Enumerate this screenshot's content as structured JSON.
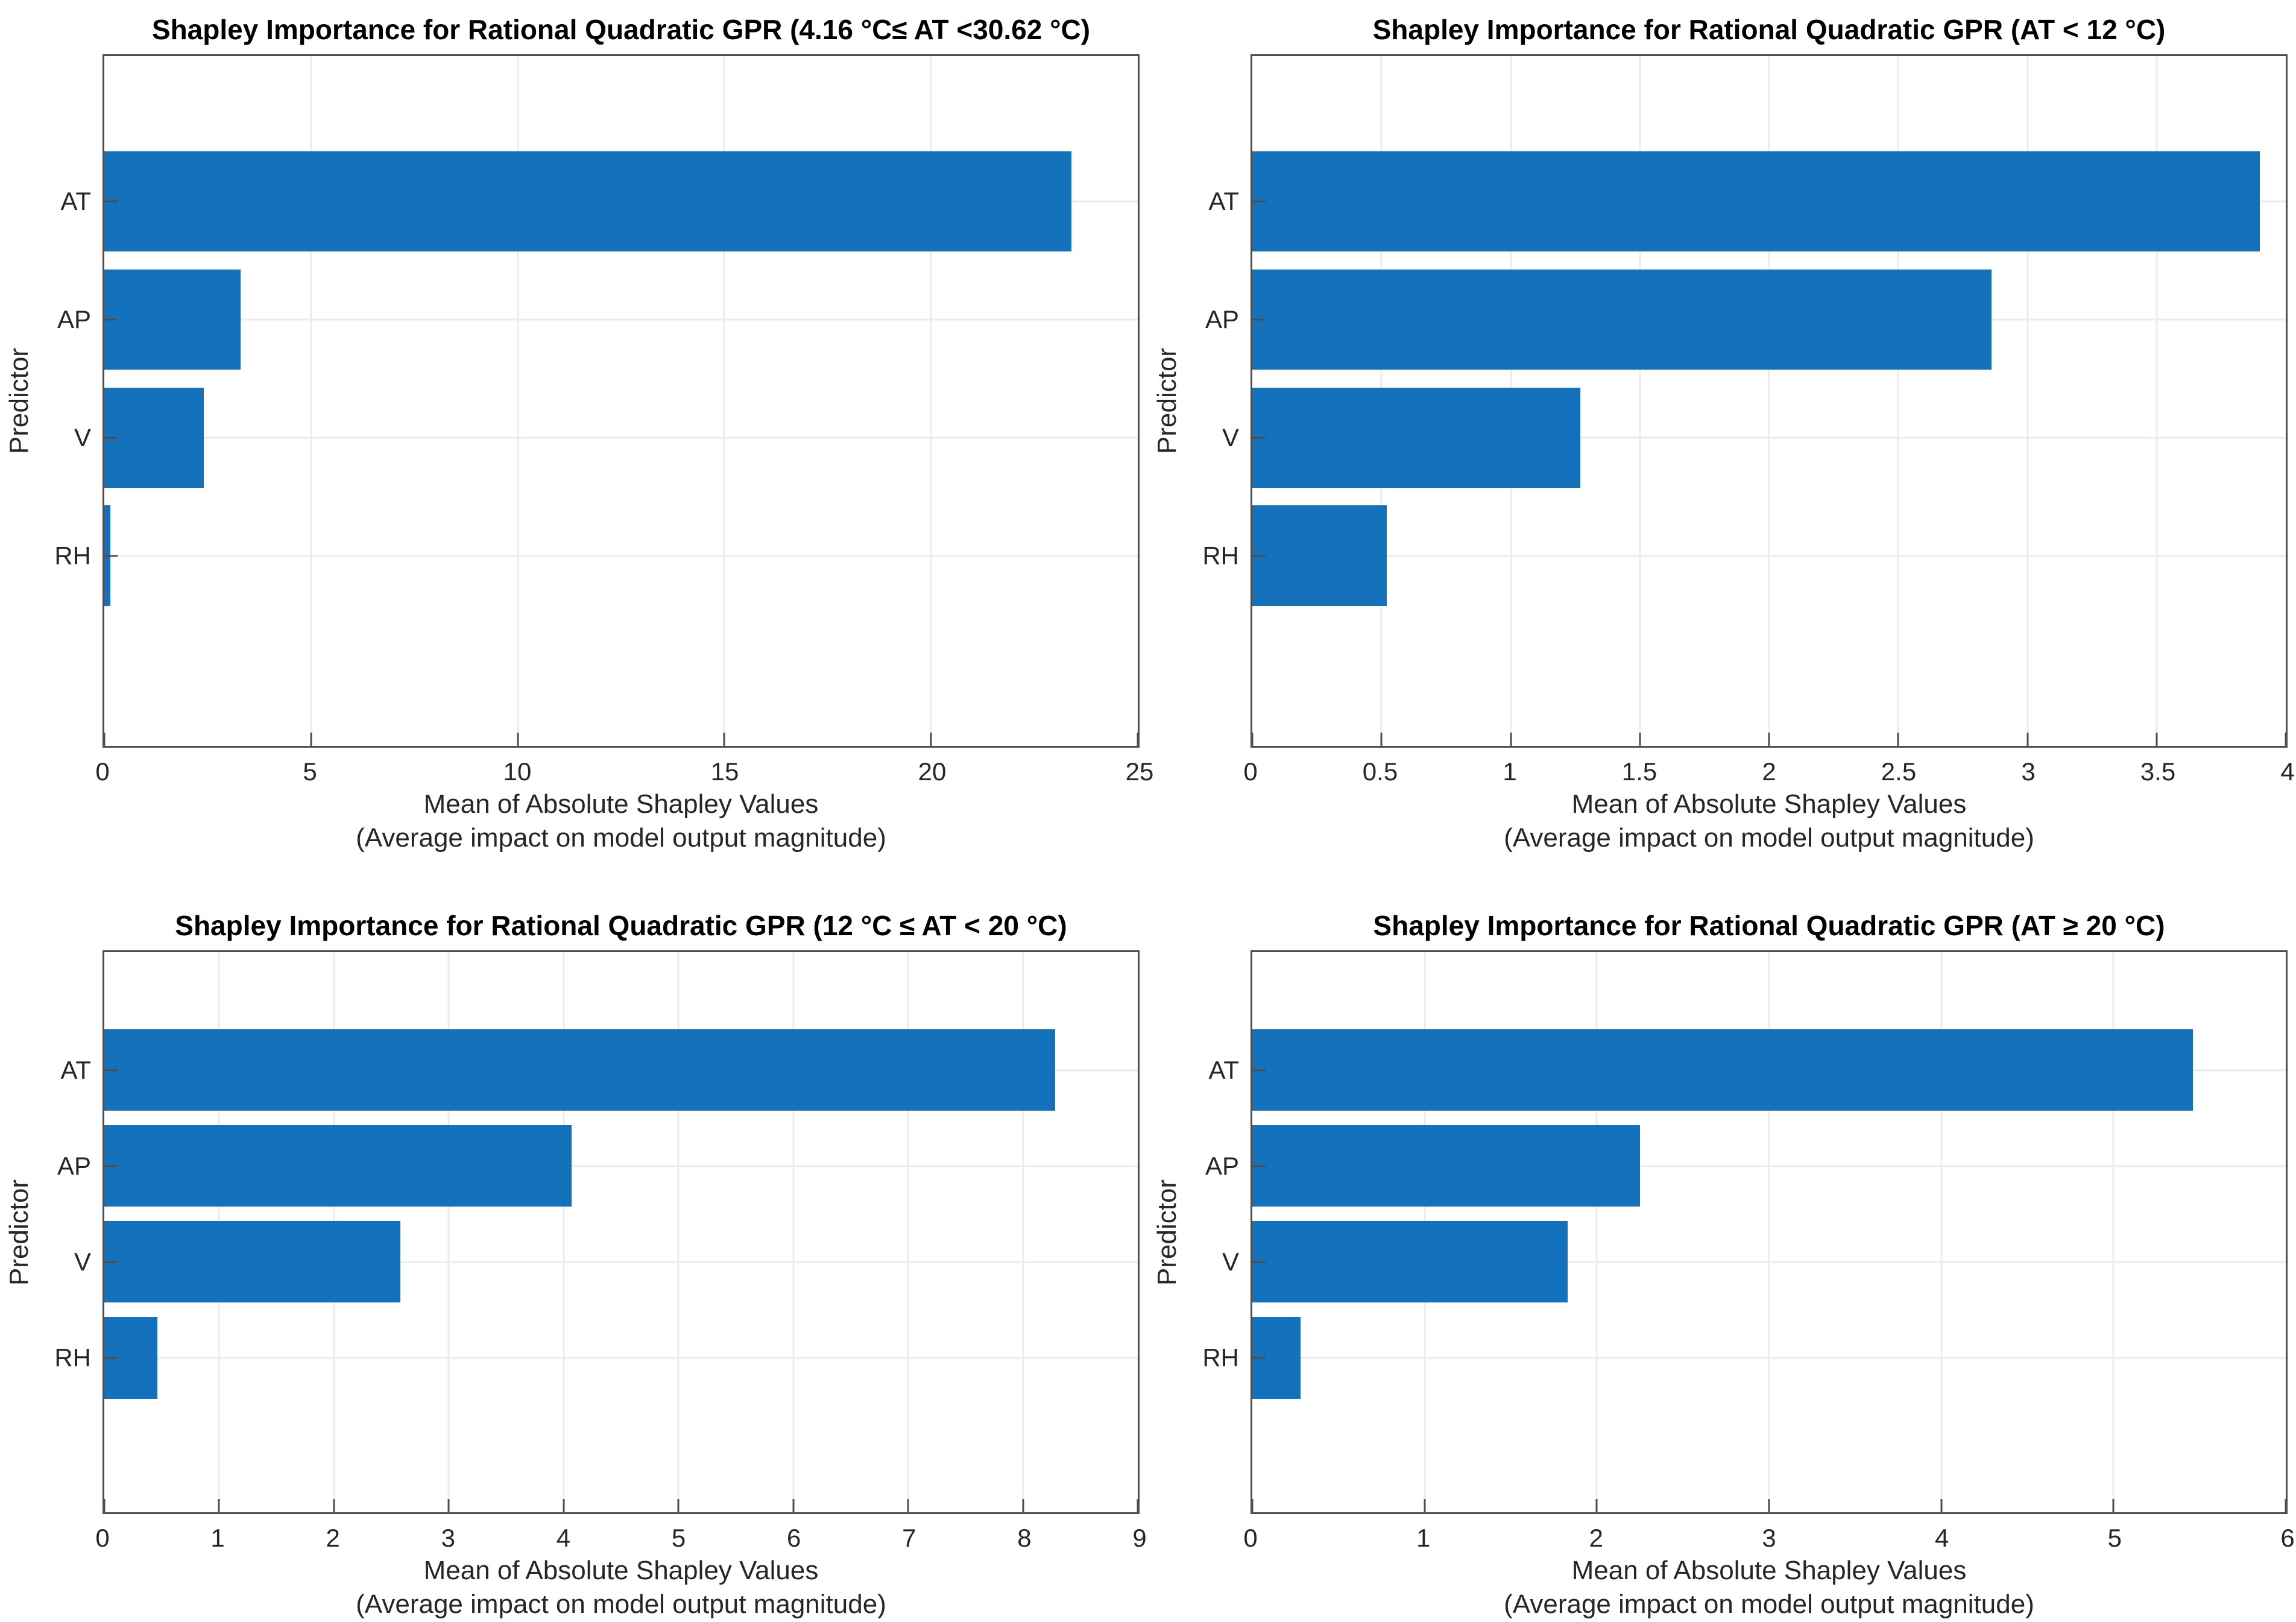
{
  "colors": {
    "bar": "#1472BD",
    "gridline": "#EBEBEB",
    "axis": "#4D4D4D",
    "text": "#262626"
  },
  "chart_data": [
    {
      "type": "bar",
      "orientation": "horizontal",
      "title": "Shapley Importance for Rational Quadratic GPR (4.16 °C≤ AT <30.62 °C)",
      "ylabel": "Predictor",
      "xlabel": "Mean of Absolute Shapley Values",
      "xlabel2": "(Average impact on model output magnitude)",
      "categories": [
        "AT",
        "AP",
        "V",
        "RH"
      ],
      "values": [
        23.4,
        3.3,
        2.4,
        0.15
      ],
      "xlim": [
        0,
        25
      ],
      "xticks": [
        "0",
        "5",
        "10",
        "15",
        "20",
        "25"
      ],
      "grid": true,
      "legend": "none"
    },
    {
      "type": "bar",
      "orientation": "horizontal",
      "title": "Shapley Importance for Rational Quadratic GPR (AT < 12 °C)",
      "ylabel": "Predictor",
      "xlabel": "Mean of Absolute Shapley Values",
      "xlabel2": "(Average impact on model output magnitude)",
      "categories": [
        "AT",
        "AP",
        "V",
        "RH"
      ],
      "values": [
        3.9,
        2.86,
        1.27,
        0.52
      ],
      "xlim": [
        0,
        4
      ],
      "xticks": [
        "0",
        "0.5",
        "1",
        "1.5",
        "2",
        "2.5",
        "3",
        "3.5",
        "4"
      ],
      "grid": true,
      "legend": "none"
    },
    {
      "type": "bar",
      "orientation": "horizontal",
      "title": "Shapley Importance for Rational Quadratic GPR (12 °C ≤ AT < 20 °C)",
      "ylabel": "Predictor",
      "xlabel": "Mean of Absolute Shapley Values",
      "xlabel2": "(Average impact on model output magnitude)",
      "categories": [
        "AT",
        "AP",
        "V",
        "RH"
      ],
      "values": [
        8.28,
        4.07,
        2.58,
        0.46
      ],
      "xlim": [
        0,
        9
      ],
      "xticks": [
        "0",
        "1",
        "2",
        "3",
        "4",
        "5",
        "6",
        "7",
        "8",
        "9"
      ],
      "grid": true,
      "legend": "none"
    },
    {
      "type": "bar",
      "orientation": "horizontal",
      "title": "Shapley Importance for Rational Quadratic GPR (AT ≥ 20 °C)",
      "ylabel": "Predictor",
      "xlabel": "Mean of Absolute Shapley Values",
      "xlabel2": "(Average impact on model output magnitude)",
      "categories": [
        "AT",
        "AP",
        "V",
        "RH"
      ],
      "values": [
        5.46,
        2.25,
        1.83,
        0.28
      ],
      "xlim": [
        0,
        6
      ],
      "xticks": [
        "0",
        "1",
        "2",
        "3",
        "4",
        "5",
        "6"
      ],
      "grid": true,
      "legend": "none"
    }
  ]
}
